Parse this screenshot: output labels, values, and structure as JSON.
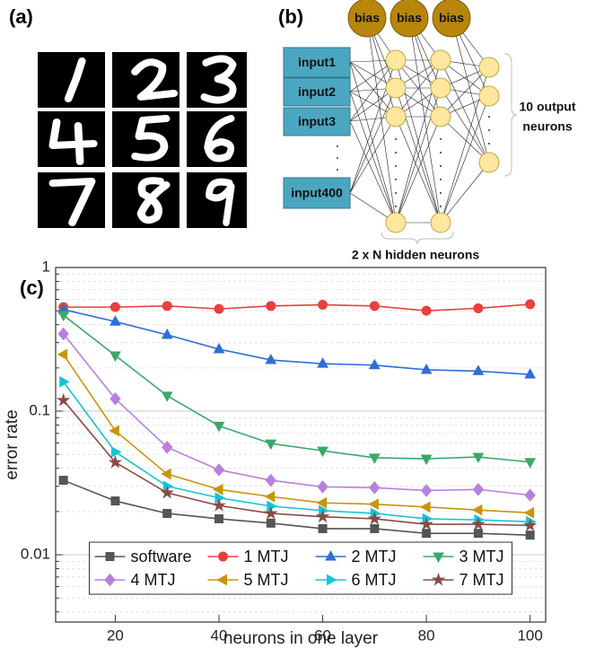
{
  "panel_labels": [
    "(a)",
    "(b)",
    "(c)"
  ],
  "network": {
    "bias": [
      "bias",
      "bias",
      "bias"
    ],
    "inputs": [
      "input1",
      "input2",
      "input3",
      "input400"
    ],
    "output_note": [
      "10 output",
      "neurons"
    ],
    "hidden_note": "2 x N hidden neurons"
  },
  "chart_data": {
    "type": "line",
    "xlabel": "neurons in one layer",
    "ylabel": "error rate",
    "x": [
      10,
      20,
      30,
      40,
      50,
      60,
      70,
      80,
      90,
      100
    ],
    "xlim": [
      8.5,
      103
    ],
    "xticks": [
      20,
      40,
      60,
      80,
      100
    ],
    "ylim": [
      0.0034,
      1
    ],
    "yticks": [
      0.01,
      0.1,
      1
    ],
    "log_y": true,
    "grid": true,
    "minor_grid": true,
    "legend": "lower center",
    "series": [
      {
        "name": "software",
        "color": "#555555",
        "marker": "square",
        "values": [
          0.033,
          0.0237,
          0.0194,
          0.0178,
          0.0166,
          0.0152,
          0.0152,
          0.0141,
          0.0141,
          0.0137
        ]
      },
      {
        "name": "1 MTJ",
        "color": "#e8403c",
        "marker": "circle",
        "values": [
          0.53,
          0.53,
          0.54,
          0.515,
          0.54,
          0.55,
          0.54,
          0.5,
          0.52,
          0.555
        ]
      },
      {
        "name": "2 MTJ",
        "color": "#2d6fd6",
        "marker": "triangle-up",
        "values": [
          0.51,
          0.42,
          0.34,
          0.27,
          0.227,
          0.214,
          0.209,
          0.194,
          0.19,
          0.18
        ]
      },
      {
        "name": "3 MTJ",
        "color": "#3aa86a",
        "marker": "triangle-down",
        "values": [
          0.466,
          0.244,
          0.128,
          0.079,
          0.0595,
          0.053,
          0.0474,
          0.0466,
          0.048,
          0.0442
        ]
      },
      {
        "name": "4 MTJ",
        "color": "#b97fe0",
        "marker": "diamond",
        "values": [
          0.345,
          0.122,
          0.056,
          0.039,
          0.033,
          0.0297,
          0.0293,
          0.028,
          0.0285,
          0.026
        ]
      },
      {
        "name": "5 MTJ",
        "color": "#c8950a",
        "marker": "triangle-left",
        "values": [
          0.248,
          0.073,
          0.0365,
          0.0285,
          0.0254,
          0.023,
          0.0225,
          0.0215,
          0.0205,
          0.0196
        ]
      },
      {
        "name": "6 MTJ",
        "color": "#17c3d8",
        "marker": "triangle-right",
        "values": [
          0.16,
          0.052,
          0.03,
          0.0249,
          0.0218,
          0.0203,
          0.0194,
          0.0178,
          0.0175,
          0.017
        ]
      },
      {
        "name": "7 MTJ",
        "color": "#8a4a44",
        "marker": "star",
        "values": [
          0.119,
          0.044,
          0.027,
          0.022,
          0.0194,
          0.0184,
          0.0178,
          0.0163,
          0.0163,
          0.016
        ]
      }
    ]
  }
}
